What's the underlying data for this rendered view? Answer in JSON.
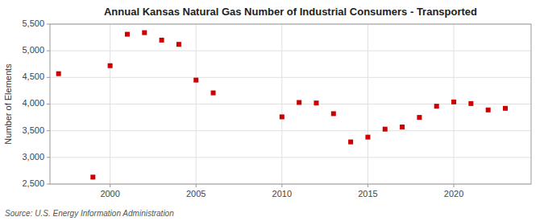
{
  "chart_data": {
    "type": "scatter",
    "title": "Annual Kansas Natural Gas Number of Industrial Consumers - Transported",
    "ylabel": "Number of Elements",
    "source": "Source: U.S. Energy Information Administration",
    "x": [
      1997,
      1999,
      2000,
      2001,
      2002,
      2003,
      2004,
      2005,
      2006,
      2010,
      2011,
      2012,
      2013,
      2014,
      2015,
      2016,
      2017,
      2018,
      2019,
      2020,
      2021,
      2022,
      2023
    ],
    "values": [
      4570,
      2630,
      4720,
      5310,
      5340,
      5200,
      5120,
      4450,
      4210,
      3760,
      4030,
      4020,
      3820,
      3290,
      3380,
      3530,
      3570,
      3750,
      3960,
      4040,
      4010,
      3890,
      3920
    ],
    "color": "#cc0000",
    "marker": "square",
    "xlim": [
      1996.5,
      2024.5
    ],
    "ylim": [
      2500,
      5500
    ],
    "xticks": [
      2000,
      2005,
      2010,
      2015,
      2020
    ],
    "yticks": [
      {
        "value": 2500,
        "label": "2,500"
      },
      {
        "value": 3000,
        "label": "3,000"
      },
      {
        "value": 3500,
        "label": "3,500"
      },
      {
        "value": 4000,
        "label": "4,000"
      },
      {
        "value": 4500,
        "label": "4,500"
      },
      {
        "value": 5000,
        "label": "5,000"
      },
      {
        "value": 5500,
        "label": "5,500"
      }
    ],
    "grid": true
  }
}
